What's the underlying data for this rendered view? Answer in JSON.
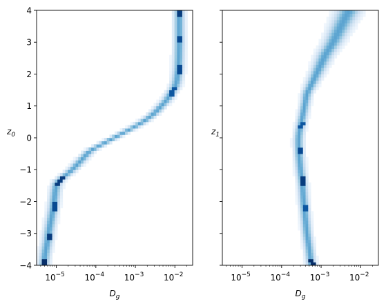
{
  "chart_data": [
    {
      "type": "heatmap",
      "subtype": "2d-histogram",
      "xlabel": {
        "base": "D",
        "sub": "g"
      },
      "ylabel": {
        "base": "z",
        "sub": "0"
      },
      "xscale": "log",
      "xlim_log10": [
        -5.5,
        -1.55
      ],
      "ylim": [
        -4,
        4
      ],
      "grid": false,
      "cmap": "Blues",
      "xticks": [
        {
          "exp": "-5",
          "value": -5
        },
        {
          "exp": "-4",
          "value": -4
        },
        {
          "exp": "-3",
          "value": -3
        },
        {
          "exp": "-2",
          "value": -2
        }
      ],
      "yticks": [
        "-4",
        "-3",
        "-2",
        "-1",
        "0",
        "1",
        "2",
        "3",
        "4"
      ],
      "show_ytick_labels": true,
      "ridge": [
        [
          -4.0,
          -5.32
        ],
        [
          -3.8,
          -5.3
        ],
        [
          -3.6,
          -5.28
        ],
        [
          -3.4,
          -5.25
        ],
        [
          -3.2,
          -5.22
        ],
        [
          -3.0,
          -5.2
        ],
        [
          -2.8,
          -5.17
        ],
        [
          -2.6,
          -5.14
        ],
        [
          -2.4,
          -5.11
        ],
        [
          -2.2,
          -5.08
        ],
        [
          -2.0,
          -5.06
        ],
        [
          -1.8,
          -5.04
        ],
        [
          -1.6,
          -5.02
        ],
        [
          -1.4,
          -4.98
        ],
        [
          -1.3,
          -4.9
        ],
        [
          -1.2,
          -4.8
        ],
        [
          -1.1,
          -4.7
        ],
        [
          -1.0,
          -4.6
        ],
        [
          -0.8,
          -4.45
        ],
        [
          -0.6,
          -4.3
        ],
        [
          -0.4,
          -4.15
        ],
        [
          -0.2,
          -3.85
        ],
        [
          0.0,
          -3.55
        ],
        [
          0.2,
          -3.25
        ],
        [
          0.4,
          -2.95
        ],
        [
          0.6,
          -2.7
        ],
        [
          0.8,
          -2.5
        ],
        [
          1.0,
          -2.35
        ],
        [
          1.2,
          -2.2
        ],
        [
          1.4,
          -2.1
        ],
        [
          1.6,
          -2.0
        ],
        [
          1.8,
          -1.95
        ],
        [
          2.0,
          -1.93
        ],
        [
          2.2,
          -1.91
        ],
        [
          2.5,
          -1.9
        ],
        [
          3.0,
          -1.89
        ],
        [
          3.5,
          -1.89
        ],
        [
          4.0,
          -1.89
        ]
      ],
      "peaks": [
        [
          -3.9,
          -5.32,
          1.0
        ],
        [
          -3.1,
          -5.21,
          0.95
        ],
        [
          -2.15,
          -5.07,
          0.9
        ],
        [
          -1.35,
          -4.96,
          0.95
        ],
        [
          1.45,
          -2.08,
          0.85
        ],
        [
          2.15,
          -1.92,
          0.9
        ],
        [
          3.1,
          -1.89,
          0.9
        ],
        [
          3.9,
          -1.89,
          0.95
        ]
      ],
      "width": 0.09,
      "spread": 0.0
    },
    {
      "type": "heatmap",
      "subtype": "2d-histogram",
      "xlabel": {
        "base": "D",
        "sub": "g"
      },
      "ylabel": {
        "base": "z",
        "sub": "1"
      },
      "xscale": "log",
      "xlim_log10": [
        -5.5,
        -1.55
      ],
      "ylim": [
        -4,
        4
      ],
      "grid": false,
      "cmap": "Blues",
      "xticks": [
        {
          "exp": "-5",
          "value": -5
        },
        {
          "exp": "-4",
          "value": -4
        },
        {
          "exp": "-3",
          "value": -3
        },
        {
          "exp": "-2",
          "value": -2
        }
      ],
      "yticks": [
        "-4",
        "-3",
        "-2",
        "-1",
        "0",
        "1",
        "2",
        "3",
        "4"
      ],
      "show_ytick_labels": false,
      "ridge": [
        [
          -4.0,
          -3.25
        ],
        [
          -3.5,
          -3.3
        ],
        [
          -3.0,
          -3.36
        ],
        [
          -2.5,
          -3.4
        ],
        [
          -2.0,
          -3.44
        ],
        [
          -1.5,
          -3.47
        ],
        [
          -1.0,
          -3.52
        ],
        [
          -0.5,
          -3.56
        ],
        [
          -0.2,
          -3.57
        ],
        [
          0.0,
          -3.57
        ],
        [
          0.2,
          -3.55
        ],
        [
          0.5,
          -3.5
        ],
        [
          0.8,
          -3.45
        ],
        [
          1.0,
          -3.42
        ],
        [
          1.4,
          -3.36
        ],
        [
          1.8,
          -3.2
        ],
        [
          2.2,
          -3.05
        ],
        [
          2.6,
          -2.9
        ],
        [
          3.0,
          -2.7
        ],
        [
          3.5,
          -2.5
        ],
        [
          4.0,
          -2.3
        ]
      ],
      "peaks": [
        [
          -3.9,
          -3.27,
          1.0
        ],
        [
          -2.2,
          -3.43,
          0.85
        ],
        [
          -1.35,
          -3.49,
          0.95
        ],
        [
          -0.4,
          -3.56,
          0.9
        ],
        [
          0.4,
          -3.53,
          0.85
        ]
      ],
      "width": 0.08,
      "spread": 0.12
    }
  ]
}
